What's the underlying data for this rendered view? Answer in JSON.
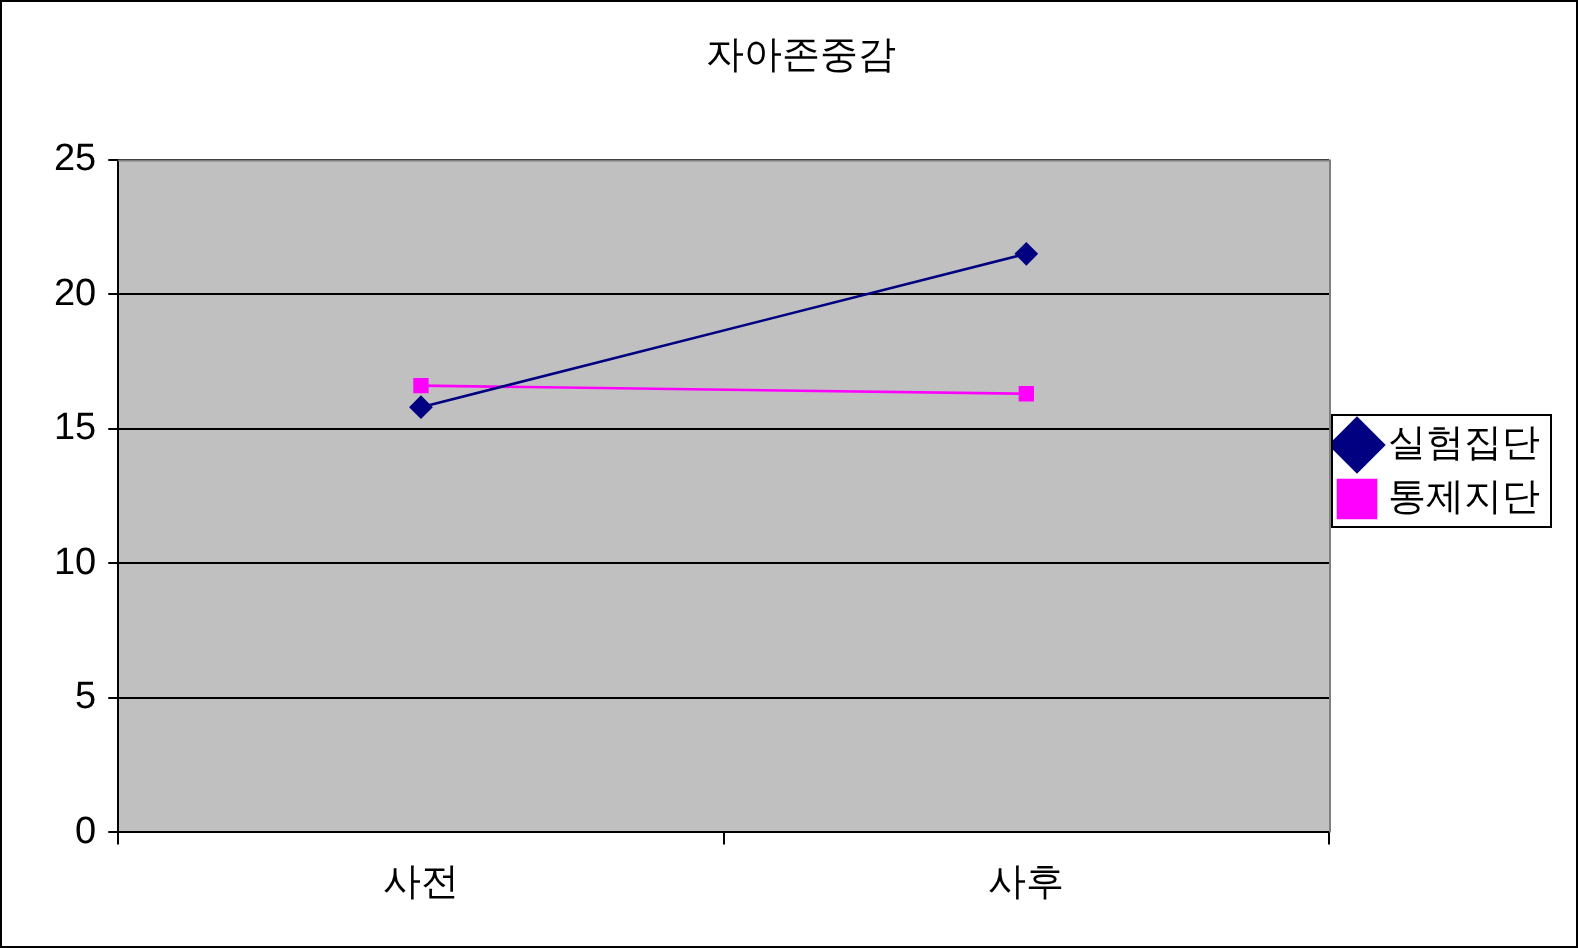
{
  "chart_data": {
    "type": "line",
    "title": "자아존중감",
    "categories": [
      "사전",
      "사후"
    ],
    "series": [
      {
        "name": "실험집단",
        "color": "#000080",
        "values": [
          15.8,
          21.5
        ],
        "marker": "diamond"
      },
      {
        "name": "통제지단",
        "color": "#ff00ff",
        "values": [
          16.6,
          16.3
        ],
        "marker": "square"
      }
    ],
    "ylim": [
      0,
      25
    ],
    "yticks": [
      0,
      5,
      10,
      15,
      20,
      25
    ],
    "grid": "y",
    "legend": "right"
  }
}
